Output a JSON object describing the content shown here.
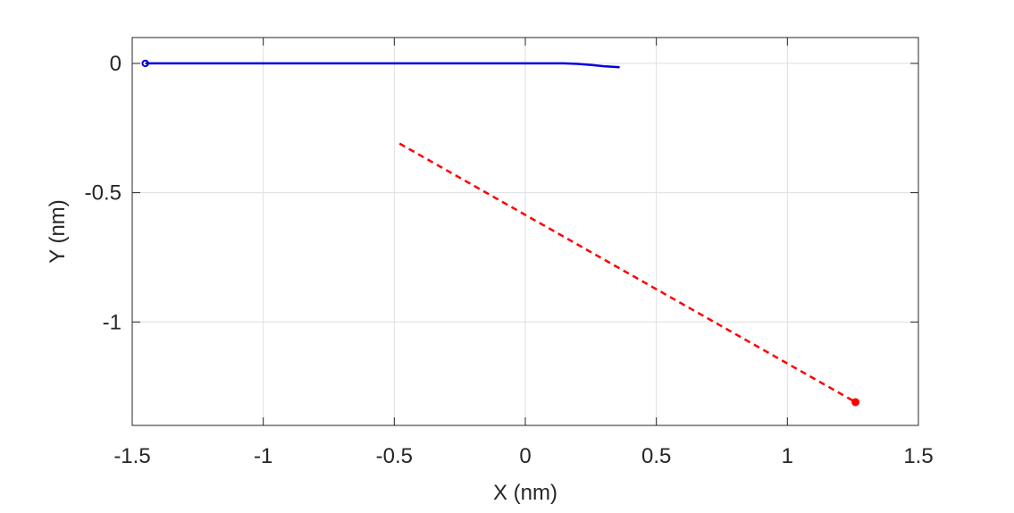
{
  "chart_data": {
    "type": "line",
    "title": "",
    "xlabel": "X (nm)",
    "ylabel": "Y (nm)",
    "xlim": [
      -1.5,
      1.5
    ],
    "ylim": [
      -1.4,
      0.1
    ],
    "xticks": [
      -1.5,
      -1,
      -0.5,
      0,
      0.5,
      1,
      1.5
    ],
    "yticks": [
      0,
      -0.5,
      -1
    ],
    "xtick_labels": [
      "-1.5",
      "-1",
      "-0.5",
      "0",
      "0.5",
      "1",
      "1.5"
    ],
    "ytick_labels": [
      "0",
      "-0.5",
      "-1"
    ],
    "grid": true,
    "legend": "none",
    "series": [
      {
        "color": "#0000dd",
        "line_style": "solid",
        "marker": "open-circle-at-start",
        "x": [
          -1.45,
          -1.0,
          -0.5,
          0.0,
          0.15,
          0.2,
          0.25,
          0.3,
          0.36
        ],
        "y": [
          0.0,
          0.0,
          0.0,
          0.0,
          0.0,
          -0.002,
          -0.006,
          -0.011,
          -0.015
        ]
      },
      {
        "color": "#ff0000",
        "line_style": "dashed",
        "marker": "filled-dot-at-end",
        "x": [
          -0.48,
          1.26
        ],
        "y": [
          -0.31,
          -1.31
        ]
      }
    ]
  }
}
